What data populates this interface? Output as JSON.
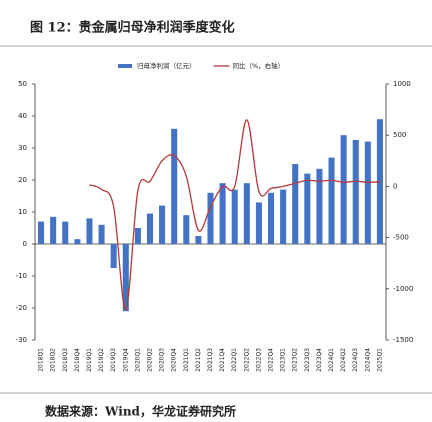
{
  "chart_data": {
    "type": "bar_line",
    "title": "图 12：贵金属归母净利润季度变化",
    "source": "数据来源：Wind，华龙证券研究所",
    "categories": [
      "2018Q1",
      "2018Q2",
      "2018Q3",
      "2018Q4",
      "2019Q1",
      "2019Q2",
      "2019Q3",
      "2019Q4",
      "2020Q1",
      "2020Q2",
      "2020Q3",
      "2020Q4",
      "2021Q1",
      "2021Q2",
      "2021Q3",
      "2021Q4",
      "2022Q1",
      "2022Q2",
      "2022Q3",
      "2022Q4",
      "2023Q1",
      "2023Q2",
      "2023Q3",
      "2023Q4",
      "2024Q1",
      "2024Q2",
      "2024Q3",
      "2024Q4",
      "2025Q1"
    ],
    "series": [
      {
        "name": "归母净利润（亿元）",
        "type": "bar",
        "color": "#4472c4",
        "values": [
          7,
          8.5,
          7,
          1.5,
          8,
          6,
          -7.5,
          -21,
          5,
          9.5,
          12,
          36,
          9,
          2.5,
          16,
          19,
          17,
          19,
          13,
          16,
          17,
          25,
          22,
          23.5,
          27,
          34,
          32.5,
          32,
          39
        ]
      },
      {
        "name": "同比（%，右轴）",
        "type": "line",
        "axis": "y2",
        "color": "#b5393a",
        "values": [
          null,
          null,
          null,
          null,
          15,
          -30,
          -200,
          -1200,
          -40,
          50,
          250,
          300,
          100,
          -430,
          -200,
          0,
          0,
          650,
          -50,
          -20,
          0,
          30,
          60,
          50,
          60,
          40,
          50,
          40,
          45
        ]
      }
    ],
    "ylim": [
      -30,
      50
    ],
    "yticks": [
      -30,
      -20,
      -10,
      0,
      10,
      20,
      30,
      40,
      50
    ],
    "y2lim": [
      -1500,
      1000
    ],
    "y2ticks": [
      -1500,
      -1000,
      -500,
      0,
      500,
      1000
    ]
  }
}
